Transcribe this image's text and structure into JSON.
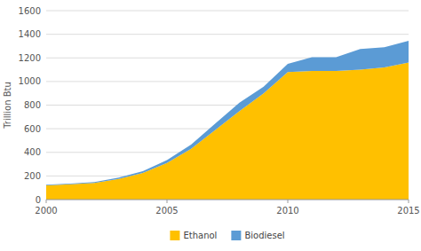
{
  "chart_data": {
    "type": "area",
    "stacked": true,
    "x": [
      2000,
      2001,
      2002,
      2003,
      2004,
      2005,
      2006,
      2007,
      2008,
      2009,
      2010,
      2011,
      2012,
      2013,
      2014,
      2015
    ],
    "series": [
      {
        "name": "Ethanol",
        "color": "#FFC000",
        "values": [
          120,
          130,
          140,
          175,
          225,
          310,
          430,
          590,
          750,
          900,
          1080,
          1090,
          1090,
          1100,
          1120,
          1160
        ]
      },
      {
        "name": "Biodiesel",
        "color": "#5B9BD5",
        "values": [
          5,
          5,
          8,
          10,
          15,
          25,
          35,
          55,
          70,
          55,
          70,
          115,
          115,
          175,
          170,
          185
        ]
      }
    ],
    "y_label": "Trillion Btu",
    "xlim": [
      2000,
      2015
    ],
    "ylim": [
      0,
      1600
    ],
    "xticks": [
      2000,
      2005,
      2010,
      2015
    ],
    "yticks": [
      0,
      200,
      400,
      600,
      800,
      1000,
      1200,
      1400,
      1600
    ],
    "grid": true,
    "legend": "bottom"
  }
}
